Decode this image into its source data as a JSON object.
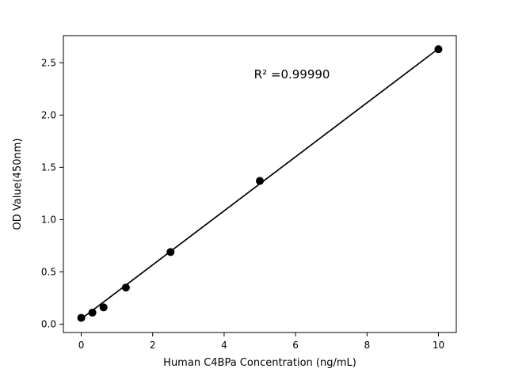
{
  "figure": {
    "background": "#ffffff"
  },
  "chart_data": {
    "type": "scatter",
    "title": "",
    "xlabel": "Human C4BPa Concentration (ng/mL)",
    "ylabel": "OD Value(450nm)",
    "x": [
      0,
      0.3125,
      0.625,
      1.25,
      2.5,
      5,
      10
    ],
    "y": [
      0.06,
      0.11,
      0.16,
      0.35,
      0.69,
      1.37,
      2.63
    ],
    "fit_line": {
      "x": [
        0,
        10
      ],
      "y": [
        0.05,
        2.635
      ]
    },
    "xlim": [
      -0.5,
      10.5
    ],
    "ylim": [
      -0.08,
      2.76
    ],
    "xticks": [
      0,
      2,
      4,
      6,
      8,
      10
    ],
    "yticks": [
      0.0,
      0.5,
      1.0,
      1.5,
      2.0,
      2.5
    ],
    "annotation": {
      "text": "R² =0.99990",
      "x": 5.9,
      "y": 2.35
    },
    "marker_color": "#000000",
    "line_color": "#000000",
    "axis_color": "#000000",
    "grid": false,
    "legend": null
  }
}
